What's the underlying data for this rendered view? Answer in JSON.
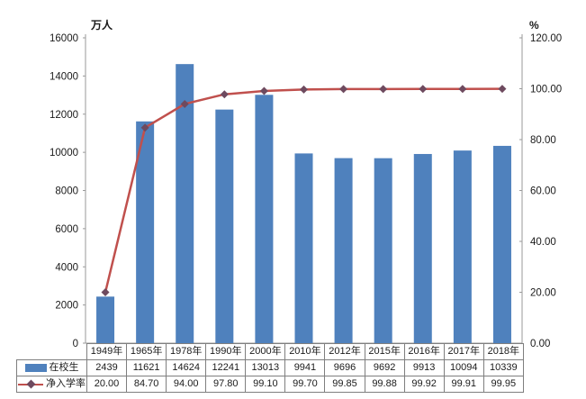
{
  "chart_data": {
    "type": "bar+line",
    "categories": [
      "1949年",
      "1965年",
      "1978年",
      "1990年",
      "2000年",
      "2010年",
      "2012年",
      "2015年",
      "2016年",
      "2017年",
      "2018年"
    ],
    "series": [
      {
        "name": "在校生",
        "type": "bar",
        "axis": "left",
        "color": "#4F81BD",
        "values": [
          2439,
          11621,
          14624,
          12241,
          13013,
          9941,
          9696,
          9692,
          9913,
          10094,
          10339
        ],
        "display_values": [
          "2439",
          "11621",
          "14624",
          "12241",
          "13013",
          "9941",
          "9696",
          "9692",
          "9913",
          "10094",
          "10339"
        ]
      },
      {
        "name": "净入学率",
        "type": "line",
        "axis": "right",
        "color": "#C0504D",
        "marker": "diamond",
        "marker_color": "#6E4A5F",
        "values": [
          20.0,
          84.7,
          94.0,
          97.8,
          99.1,
          99.7,
          99.85,
          99.88,
          99.92,
          99.91,
          99.95
        ],
        "display_values": [
          "20.00",
          "84.70",
          "94.00",
          "97.80",
          "99.10",
          "99.70",
          "99.85",
          "99.88",
          "99.92",
          "99.91",
          "99.95"
        ]
      }
    ],
    "left_axis": {
      "label": "万人",
      "min": 0,
      "max": 16000,
      "ticks": [
        "0",
        "2000",
        "4000",
        "6000",
        "8000",
        "10000",
        "12000",
        "14000",
        "16000"
      ]
    },
    "right_axis": {
      "label": "%",
      "min": 0,
      "max": 120,
      "ticks": [
        "0.00",
        "20.00",
        "40.00",
        "60.00",
        "80.00",
        "100.00",
        "120.00"
      ]
    },
    "grid": false,
    "legend_position": "data-table-left",
    "data_table": true,
    "background": "#FFFFFF",
    "axis_color": "#9A9A9A",
    "table_border_color": "#7F7F7F",
    "text_color": "#1A1A1A"
  }
}
